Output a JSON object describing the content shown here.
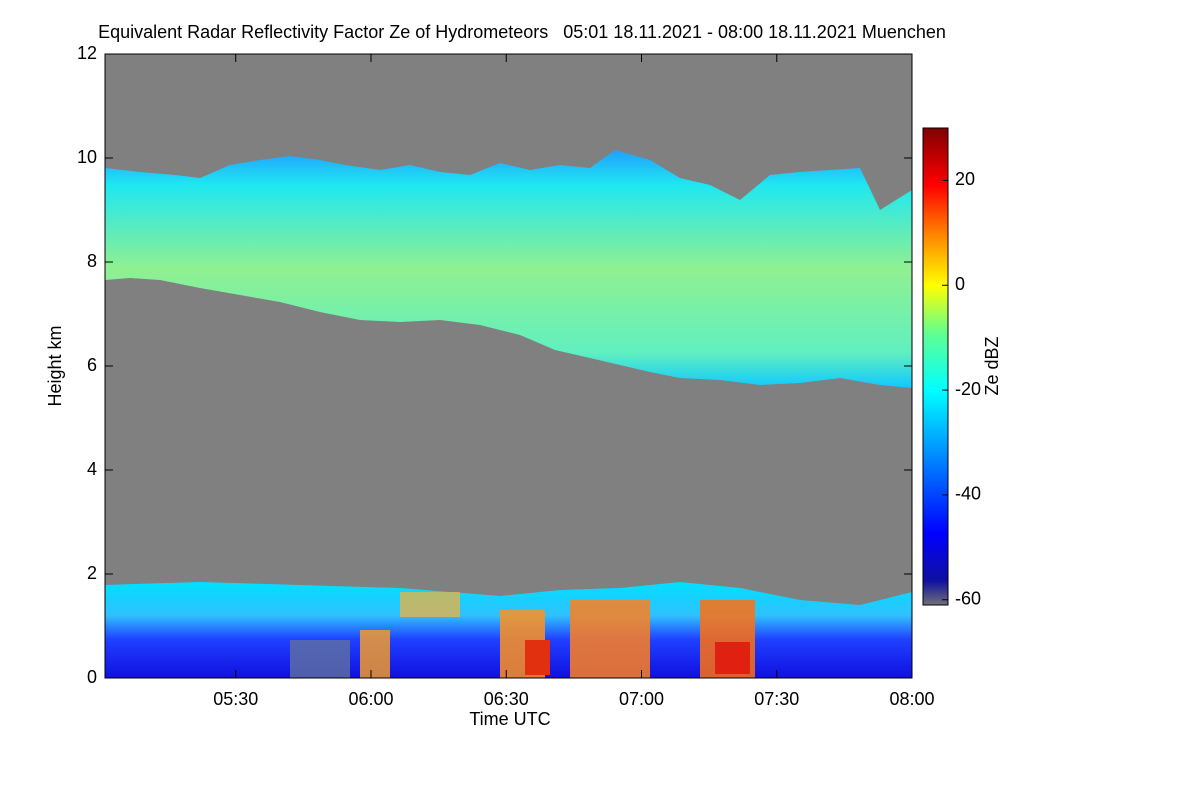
{
  "chart_data": {
    "type": "heatmap",
    "title": "Equivalent Radar Reflectivity Factor Ze of Hydrometeors   05:01 18.11.2021 - 08:00 18.11.2021 Muenchen",
    "x_label": "Time UTC",
    "y_label": "Height km",
    "colorbar_label": "Ze dBZ",
    "xlim": [
      301,
      480
    ],
    "xticks": [
      {
        "value": 330,
        "label": "05:30"
      },
      {
        "value": 360,
        "label": "06:00"
      },
      {
        "value": 390,
        "label": "06:30"
      },
      {
        "value": 420,
        "label": "07:00"
      },
      {
        "value": 450,
        "label": "07:30"
      },
      {
        "value": 480,
        "label": "08:00"
      }
    ],
    "ylim": [
      0,
      12
    ],
    "yticks": [
      0,
      2,
      4,
      6,
      8,
      10,
      12
    ],
    "clim": [
      -61,
      30
    ],
    "cticks": [
      -60,
      -40,
      -20,
      0,
      20
    ]
  }
}
